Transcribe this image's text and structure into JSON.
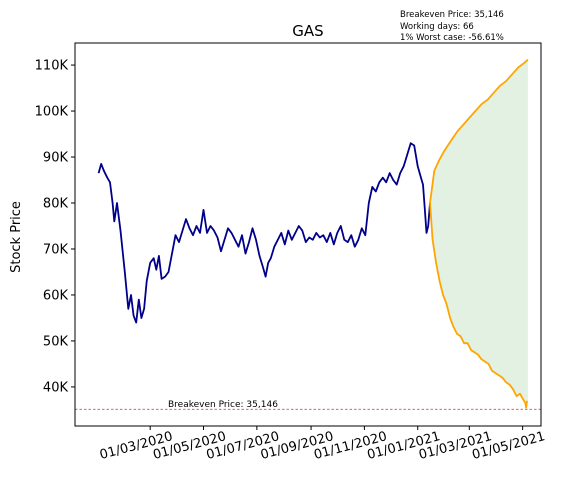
{
  "chart_data": {
    "type": "line",
    "title": "GAS",
    "xlabel": "",
    "ylabel": "Stock Price",
    "info_lines": [
      "Breakeven Price: 35,146",
      "Working days: 66",
      "1% Worst case: -56.61%"
    ],
    "breakeven": {
      "label": "Breakeven Price: 35,146",
      "value": 35146,
      "color": "#d62728"
    },
    "xlim": [
      "2019-12-06",
      "2021-05-22"
    ],
    "ylim": [
      31500,
      114800
    ],
    "yticks": [
      {
        "value": 40000,
        "label": "40K"
      },
      {
        "value": 50000,
        "label": "50K"
      },
      {
        "value": 60000,
        "label": "60K"
      },
      {
        "value": 70000,
        "label": "70K"
      },
      {
        "value": 80000,
        "label": "80K"
      },
      {
        "value": 90000,
        "label": "90K"
      },
      {
        "value": 100000,
        "label": "100K"
      },
      {
        "value": 110000,
        "label": "110K"
      }
    ],
    "xticks": [
      {
        "date": "2020-03-01",
        "label": "01/03/2020"
      },
      {
        "date": "2020-05-01",
        "label": "01/05/2020"
      },
      {
        "date": "2020-07-01",
        "label": "01/07/2020"
      },
      {
        "date": "2020-09-01",
        "label": "01/09/2020"
      },
      {
        "date": "2020-11-01",
        "label": "01/11/2020"
      },
      {
        "date": "2021-01-01",
        "label": "01/01/2021"
      },
      {
        "date": "2021-03-01",
        "label": "01/03/2021"
      },
      {
        "date": "2021-05-01",
        "label": "01/05/2021"
      }
    ],
    "colors": {
      "history": "#00008b",
      "projection": "#ffa500",
      "band": "#e3f1e2"
    },
    "series": [
      {
        "role": "history",
        "points": [
          [
            "2020-01-02",
            86500
          ],
          [
            "2020-01-05",
            88500
          ],
          [
            "2020-01-08",
            87000
          ],
          [
            "2020-01-12",
            85500
          ],
          [
            "2020-01-15",
            84500
          ],
          [
            "2020-01-18",
            80000
          ],
          [
            "2020-01-20",
            76000
          ],
          [
            "2020-01-23",
            80000
          ],
          [
            "2020-01-27",
            74000
          ],
          [
            "2020-02-01",
            65000
          ],
          [
            "2020-02-05",
            57000
          ],
          [
            "2020-02-08",
            60000
          ],
          [
            "2020-02-11",
            55500
          ],
          [
            "2020-02-14",
            54000
          ],
          [
            "2020-02-17",
            59000
          ],
          [
            "2020-02-20",
            55000
          ],
          [
            "2020-02-23",
            57000
          ],
          [
            "2020-02-26",
            63000
          ],
          [
            "2020-03-01",
            67000
          ],
          [
            "2020-03-05",
            68000
          ],
          [
            "2020-03-08",
            65500
          ],
          [
            "2020-03-11",
            68500
          ],
          [
            "2020-03-14",
            63500
          ],
          [
            "2020-03-18",
            64000
          ],
          [
            "2020-03-22",
            65000
          ],
          [
            "2020-03-26",
            69000
          ],
          [
            "2020-03-30",
            73000
          ],
          [
            "2020-04-03",
            71500
          ],
          [
            "2020-04-07",
            74000
          ],
          [
            "2020-04-11",
            76500
          ],
          [
            "2020-04-15",
            74500
          ],
          [
            "2020-04-19",
            73000
          ],
          [
            "2020-04-23",
            75000
          ],
          [
            "2020-04-27",
            73500
          ],
          [
            "2020-05-01",
            78500
          ],
          [
            "2020-05-05",
            73500
          ],
          [
            "2020-05-09",
            75000
          ],
          [
            "2020-05-13",
            74000
          ],
          [
            "2020-05-17",
            72500
          ],
          [
            "2020-05-21",
            69500
          ],
          [
            "2020-05-25",
            72000
          ],
          [
            "2020-05-29",
            74500
          ],
          [
            "2020-06-02",
            73500
          ],
          [
            "2020-06-06",
            72000
          ],
          [
            "2020-06-10",
            70500
          ],
          [
            "2020-06-14",
            73000
          ],
          [
            "2020-06-18",
            69000
          ],
          [
            "2020-06-22",
            71500
          ],
          [
            "2020-06-26",
            74500
          ],
          [
            "2020-06-30",
            72000
          ],
          [
            "2020-07-04",
            68500
          ],
          [
            "2020-07-08",
            66000
          ],
          [
            "2020-07-11",
            64000
          ],
          [
            "2020-07-14",
            67000
          ],
          [
            "2020-07-17",
            68000
          ],
          [
            "2020-07-21",
            70500
          ],
          [
            "2020-07-25",
            72000
          ],
          [
            "2020-07-29",
            73500
          ],
          [
            "2020-08-02",
            71000
          ],
          [
            "2020-08-06",
            74000
          ],
          [
            "2020-08-10",
            72000
          ],
          [
            "2020-08-14",
            73500
          ],
          [
            "2020-08-18",
            75000
          ],
          [
            "2020-08-22",
            74000
          ],
          [
            "2020-08-26",
            71500
          ],
          [
            "2020-08-30",
            72500
          ],
          [
            "2020-09-03",
            72000
          ],
          [
            "2020-09-07",
            73500
          ],
          [
            "2020-09-11",
            72500
          ],
          [
            "2020-09-15",
            73000
          ],
          [
            "2020-09-19",
            71500
          ],
          [
            "2020-09-23",
            73500
          ],
          [
            "2020-09-27",
            71000
          ],
          [
            "2020-10-01",
            73500
          ],
          [
            "2020-10-05",
            75000
          ],
          [
            "2020-10-09",
            72000
          ],
          [
            "2020-10-13",
            71500
          ],
          [
            "2020-10-17",
            73000
          ],
          [
            "2020-10-21",
            70500
          ],
          [
            "2020-10-25",
            72000
          ],
          [
            "2020-10-29",
            74500
          ],
          [
            "2020-11-02",
            73000
          ],
          [
            "2020-11-06",
            80000
          ],
          [
            "2020-11-10",
            83500
          ],
          [
            "2020-11-14",
            82500
          ],
          [
            "2020-11-18",
            84500
          ],
          [
            "2020-11-22",
            85500
          ],
          [
            "2020-11-26",
            84500
          ],
          [
            "2020-11-30",
            86500
          ],
          [
            "2020-12-04",
            85000
          ],
          [
            "2020-12-08",
            84000
          ],
          [
            "2020-12-12",
            86500
          ],
          [
            "2020-12-16",
            88000
          ],
          [
            "2020-12-20",
            90500
          ],
          [
            "2020-12-24",
            93000
          ],
          [
            "2020-12-28",
            92500
          ],
          [
            "2021-01-01",
            88000
          ],
          [
            "2021-01-04",
            86000
          ],
          [
            "2021-01-07",
            84000
          ],
          [
            "2021-01-09",
            79000
          ],
          [
            "2021-01-11",
            73500
          ],
          [
            "2021-01-13",
            75000
          ],
          [
            "2021-01-15",
            80000
          ]
        ]
      },
      {
        "role": "projection-upper",
        "points": [
          [
            "2021-01-15",
            80000
          ],
          [
            "2021-01-20",
            87000
          ],
          [
            "2021-01-26",
            89500
          ],
          [
            "2021-02-01",
            91500
          ],
          [
            "2021-02-08",
            93500
          ],
          [
            "2021-02-15",
            95500
          ],
          [
            "2021-02-22",
            97000
          ],
          [
            "2021-03-01",
            98500
          ],
          [
            "2021-03-08",
            100000
          ],
          [
            "2021-03-15",
            101500
          ],
          [
            "2021-03-22",
            102500
          ],
          [
            "2021-03-29",
            104000
          ],
          [
            "2021-04-05",
            105500
          ],
          [
            "2021-04-12",
            106500
          ],
          [
            "2021-04-19",
            108000
          ],
          [
            "2021-04-26",
            109500
          ],
          [
            "2021-05-03",
            110500
          ],
          [
            "2021-05-07",
            111200
          ]
        ]
      },
      {
        "role": "projection-lower",
        "points": [
          [
            "2021-01-15",
            80000
          ],
          [
            "2021-01-18",
            72000
          ],
          [
            "2021-01-22",
            67000
          ],
          [
            "2021-01-26",
            63000
          ],
          [
            "2021-01-30",
            60000
          ],
          [
            "2021-02-03",
            58000
          ],
          [
            "2021-02-07",
            55000
          ],
          [
            "2021-02-11",
            53000
          ],
          [
            "2021-02-15",
            51500
          ],
          [
            "2021-02-19",
            51000
          ],
          [
            "2021-02-23",
            49500
          ],
          [
            "2021-02-27",
            49500
          ],
          [
            "2021-03-03",
            48000
          ],
          [
            "2021-03-07",
            47500
          ],
          [
            "2021-03-11",
            47000
          ],
          [
            "2021-03-15",
            46000
          ],
          [
            "2021-03-19",
            45500
          ],
          [
            "2021-03-23",
            45000
          ],
          [
            "2021-03-27",
            43500
          ],
          [
            "2021-03-31",
            43000
          ],
          [
            "2021-04-04",
            42500
          ],
          [
            "2021-04-08",
            42000
          ],
          [
            "2021-04-12",
            41000
          ],
          [
            "2021-04-16",
            40500
          ],
          [
            "2021-04-20",
            39500
          ],
          [
            "2021-04-24",
            38000
          ],
          [
            "2021-04-28",
            38500
          ],
          [
            "2021-05-01",
            37500
          ],
          [
            "2021-05-04",
            36500
          ],
          [
            "2021-05-05",
            35500
          ],
          [
            "2021-05-06",
            37000
          ]
        ]
      }
    ]
  }
}
